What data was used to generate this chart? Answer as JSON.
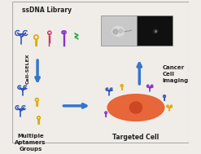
{
  "title": "",
  "background_color": "#f0ede8",
  "ssdna_label": "ssDNA Library",
  "cell_sel_label": "Cell-SELEX",
  "cancer_label": "Cancer\nCell\nImaging",
  "multiple_label": "Multiple\nAptamers\nGroups",
  "targeted_label": "Targeted Cell",
  "aptamer_colors": [
    "#3355bb",
    "#ddaa00",
    "#cc3366",
    "#8833cc",
    "#22aa44"
  ],
  "arrow_color": "#3377cc",
  "cell_color_outer": "#e86030",
  "cell_color_inner": "#cc3322",
  "cell_outline": "#cc5522",
  "nucleus_color": "#cc4422",
  "image_left_color": "#c8c8c8",
  "image_right_color": "#101010",
  "border_color": "#888888"
}
